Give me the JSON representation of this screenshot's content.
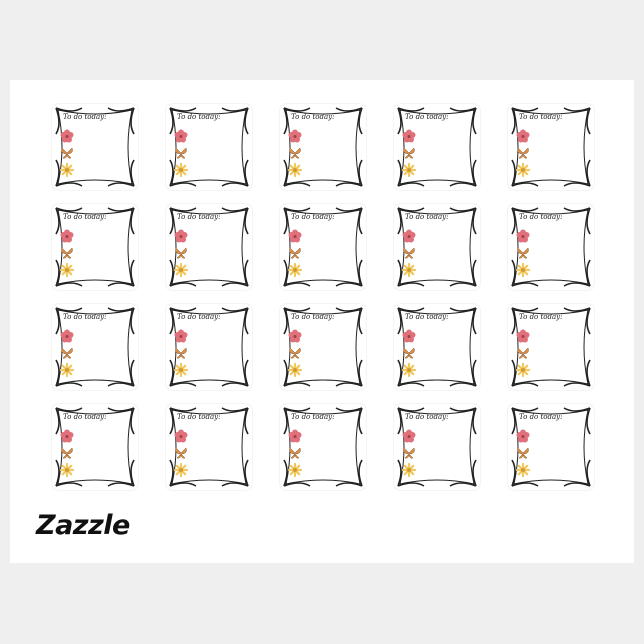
{
  "brand": "Zazzle",
  "sticker_text": "To do today:",
  "grid": {
    "rows": 4,
    "columns": 5
  },
  "icons": [
    "pink-flower-icon",
    "butterfly-icon",
    "yellow-daisy-icon"
  ],
  "colors": {
    "flower": "#e0707a",
    "butterfly": "#d9904a",
    "daisy": "#f0c860",
    "frame": "#222222"
  }
}
